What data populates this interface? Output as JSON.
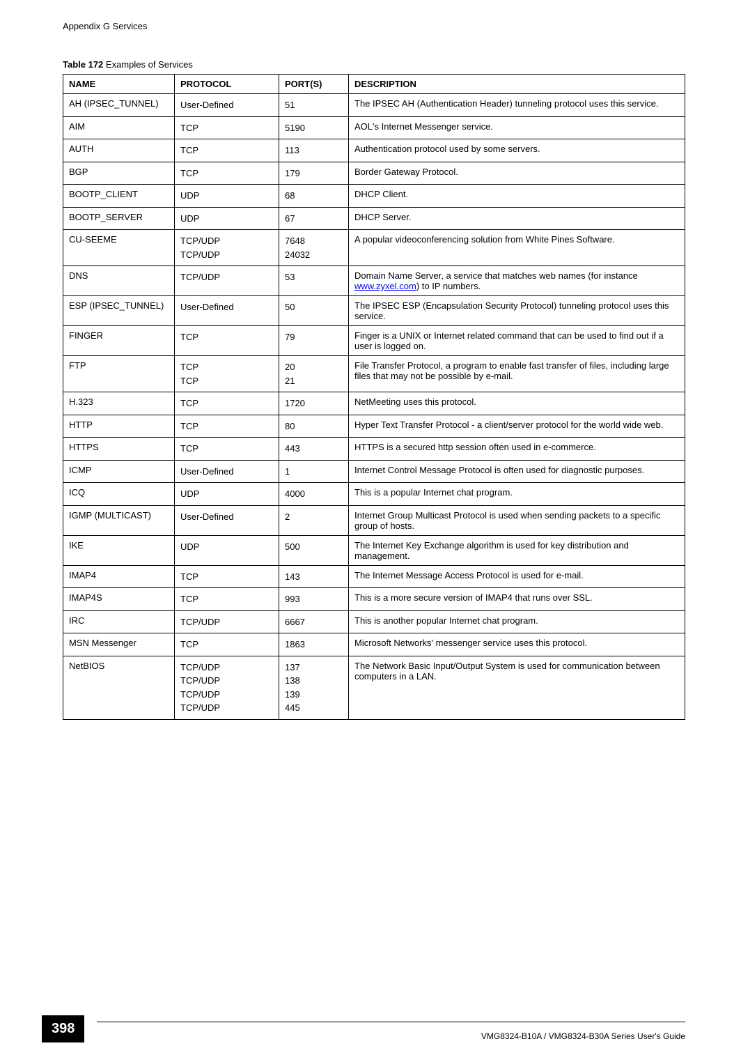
{
  "running_header": "Appendix G Services",
  "table_caption_bold": "Table 172",
  "table_caption_rest": "   Examples of Services",
  "columns": [
    "NAME",
    "PROTOCOL",
    "PORT(S)",
    "DESCRIPTION"
  ],
  "rows": [
    {
      "name": "AH (IPSEC_TUNNEL)",
      "protocol": [
        "User-Defined"
      ],
      "ports": [
        "51"
      ],
      "desc_pre": "The IPSEC AH (Authentication Header) tunneling protocol uses this service.",
      "desc_link": "",
      "desc_post": ""
    },
    {
      "name": "AIM",
      "protocol": [
        "TCP"
      ],
      "ports": [
        "5190"
      ],
      "desc_pre": "AOL's Internet Messenger service.",
      "desc_link": "",
      "desc_post": ""
    },
    {
      "name": "AUTH",
      "protocol": [
        "TCP"
      ],
      "ports": [
        "113"
      ],
      "desc_pre": "Authentication protocol used by some servers.",
      "desc_link": "",
      "desc_post": ""
    },
    {
      "name": "BGP",
      "protocol": [
        "TCP"
      ],
      "ports": [
        "179"
      ],
      "desc_pre": "Border Gateway Protocol.",
      "desc_link": "",
      "desc_post": ""
    },
    {
      "name": "BOOTP_CLIENT",
      "protocol": [
        "UDP"
      ],
      "ports": [
        "68"
      ],
      "desc_pre": "DHCP Client.",
      "desc_link": "",
      "desc_post": ""
    },
    {
      "name": "BOOTP_SERVER",
      "protocol": [
        "UDP"
      ],
      "ports": [
        "67"
      ],
      "desc_pre": "DHCP Server.",
      "desc_link": "",
      "desc_post": ""
    },
    {
      "name": "CU-SEEME",
      "protocol": [
        "TCP/UDP",
        "TCP/UDP"
      ],
      "ports": [
        "7648",
        "24032"
      ],
      "desc_pre": "A popular videoconferencing solution from White Pines Software.",
      "desc_link": "",
      "desc_post": ""
    },
    {
      "name": "DNS",
      "protocol": [
        "TCP/UDP"
      ],
      "ports": [
        "53"
      ],
      "desc_pre": "Domain Name Server, a service that matches web names (for instance ",
      "desc_link": "www.zyxel.com",
      "desc_post": ") to IP numbers."
    },
    {
      "name": "ESP (IPSEC_TUNNEL)",
      "protocol": [
        "User-Defined"
      ],
      "ports": [
        "50"
      ],
      "desc_pre": "The IPSEC ESP (Encapsulation Security Protocol) tunneling protocol uses this service.",
      "desc_link": "",
      "desc_post": ""
    },
    {
      "name": "FINGER",
      "protocol": [
        "TCP"
      ],
      "ports": [
        "79"
      ],
      "desc_pre": "Finger is a UNIX or Internet related command that can be used to find out if a user is logged on.",
      "desc_link": "",
      "desc_post": ""
    },
    {
      "name": "FTP",
      "protocol": [
        "TCP",
        "TCP"
      ],
      "ports": [
        "20",
        "21"
      ],
      "desc_pre": "File Transfer Protocol, a program to enable fast transfer of files, including large files that may not be possible by e-mail.",
      "desc_link": "",
      "desc_post": ""
    },
    {
      "name": "H.323",
      "protocol": [
        "TCP"
      ],
      "ports": [
        "1720"
      ],
      "desc_pre": "NetMeeting uses this protocol.",
      "desc_link": "",
      "desc_post": ""
    },
    {
      "name": "HTTP",
      "protocol": [
        "TCP"
      ],
      "ports": [
        "80"
      ],
      "desc_pre": "Hyper Text Transfer Protocol - a client/server protocol for the world wide web.",
      "desc_link": "",
      "desc_post": ""
    },
    {
      "name": "HTTPS",
      "protocol": [
        "TCP"
      ],
      "ports": [
        "443"
      ],
      "desc_pre": "HTTPS is a secured http session often used in e-commerce.",
      "desc_link": "",
      "desc_post": ""
    },
    {
      "name": "ICMP",
      "protocol": [
        "User-Defined"
      ],
      "ports": [
        "1"
      ],
      "desc_pre": "Internet Control Message Protocol is often used for diagnostic purposes.",
      "desc_link": "",
      "desc_post": ""
    },
    {
      "name": "ICQ",
      "protocol": [
        "UDP"
      ],
      "ports": [
        "4000"
      ],
      "desc_pre": "This is a popular Internet chat program.",
      "desc_link": "",
      "desc_post": ""
    },
    {
      "name": "IGMP (MULTICAST)",
      "protocol": [
        "User-Defined"
      ],
      "ports": [
        "2"
      ],
      "desc_pre": "Internet Group Multicast Protocol is used when sending packets to a specific group of hosts.",
      "desc_link": "",
      "desc_post": ""
    },
    {
      "name": "IKE",
      "protocol": [
        "UDP"
      ],
      "ports": [
        "500"
      ],
      "desc_pre": "The Internet Key Exchange algorithm is used for key distribution and management.",
      "desc_link": "",
      "desc_post": ""
    },
    {
      "name": "IMAP4",
      "protocol": [
        "TCP"
      ],
      "ports": [
        "143"
      ],
      "desc_pre": "The Internet Message Access Protocol is used for e-mail.",
      "desc_link": "",
      "desc_post": ""
    },
    {
      "name": "IMAP4S",
      "protocol": [
        "TCP"
      ],
      "ports": [
        "993"
      ],
      "desc_pre": "This is a more secure version of IMAP4 that runs over SSL.",
      "desc_link": "",
      "desc_post": ""
    },
    {
      "name": "IRC",
      "protocol": [
        "TCP/UDP"
      ],
      "ports": [
        "6667"
      ],
      "desc_pre": "This is another popular Internet chat program.",
      "desc_link": "",
      "desc_post": ""
    },
    {
      "name": "MSN Messenger",
      "protocol": [
        "TCP"
      ],
      "ports": [
        "1863"
      ],
      "desc_pre": "Microsoft Networks' messenger service uses this protocol.",
      "desc_link": "",
      "desc_post": ""
    },
    {
      "name": "NetBIOS",
      "protocol": [
        "TCP/UDP",
        "TCP/UDP",
        "TCP/UDP",
        "TCP/UDP"
      ],
      "ports": [
        "137",
        "138",
        "139",
        "445"
      ],
      "desc_pre": "The Network Basic Input/Output System is used for communication between computers in a LAN.",
      "desc_link": "",
      "desc_post": ""
    }
  ],
  "page_number": "398",
  "footer_text": "VMG8324-B10A / VMG8324-B30A Series User's Guide"
}
